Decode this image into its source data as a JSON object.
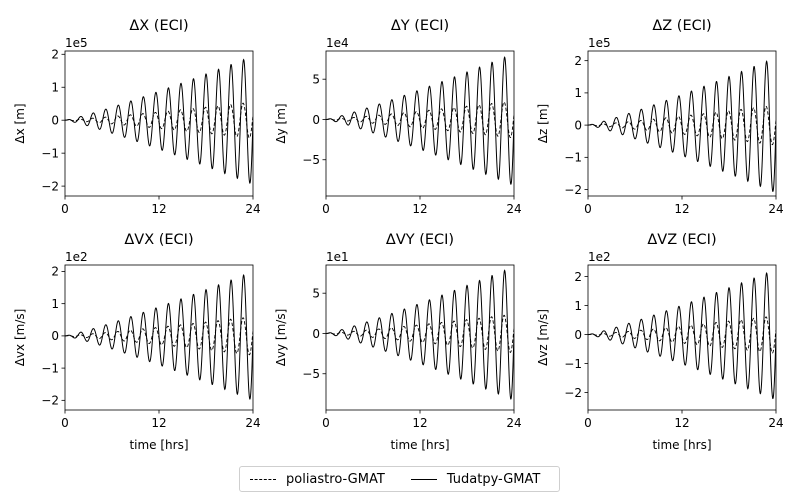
{
  "chart_data": [
    {
      "type": "line",
      "title": "ΔX (ECI)",
      "ylabel": "Δx [m]",
      "xlabel": "",
      "offset_label": "1e5",
      "xlim": [
        0,
        24
      ],
      "ylim": [
        -2.3,
        2.1
      ],
      "xticks": [
        0,
        12,
        24
      ],
      "yticks": [
        -2,
        -1,
        0,
        1,
        2
      ],
      "period_hrs": 1.6,
      "peak_at_24": {
        "Tudatpy-GMAT": 1.95,
        "poliastro-GMAT": 0.55
      }
    },
    {
      "type": "line",
      "title": "ΔY (ECI)",
      "ylabel": "Δy [m]",
      "xlabel": "",
      "offset_label": "1e4",
      "xlim": [
        0,
        24
      ],
      "ylim": [
        -9.5,
        8.5
      ],
      "xticks": [
        0,
        12,
        24
      ],
      "yticks": [
        -5,
        0,
        5
      ],
      "period_hrs": 1.6,
      "peak_at_24": {
        "Tudatpy-GMAT": 8.2,
        "poliastro-GMAT": 2.3
      }
    },
    {
      "type": "line",
      "title": "ΔZ (ECI)",
      "ylabel": "Δz [m]",
      "xlabel": "",
      "offset_label": "1e5",
      "xlim": [
        0,
        24
      ],
      "ylim": [
        -2.2,
        2.3
      ],
      "xticks": [
        0,
        12,
        24
      ],
      "yticks": [
        -2,
        -1,
        0,
        1,
        2
      ],
      "period_hrs": 1.6,
      "peak_at_24": {
        "Tudatpy-GMAT": 2.1,
        "poliastro-GMAT": 0.62
      }
    },
    {
      "type": "line",
      "title": "ΔVX (ECI)",
      "ylabel": "Δvx [m/s]",
      "xlabel": "time [hrs]",
      "offset_label": "1e2",
      "xlim": [
        0,
        24
      ],
      "ylim": [
        -2.3,
        2.2
      ],
      "xticks": [
        0,
        12,
        24
      ],
      "yticks": [
        -2,
        -1,
        0,
        1,
        2
      ],
      "period_hrs": 1.6,
      "peak_at_24": {
        "Tudatpy-GMAT": 2.0,
        "poliastro-GMAT": 0.6
      }
    },
    {
      "type": "line",
      "title": "ΔVY (ECI)",
      "ylabel": "Δvy [m/s]",
      "xlabel": "time [hrs]",
      "offset_label": "1e1",
      "xlim": [
        0,
        24
      ],
      "ylim": [
        -9.5,
        8.5
      ],
      "xticks": [
        0,
        12,
        24
      ],
      "yticks": [
        -5,
        0,
        5
      ],
      "period_hrs": 1.6,
      "peak_at_24": {
        "Tudatpy-GMAT": 8.3,
        "poliastro-GMAT": 2.4
      }
    },
    {
      "type": "line",
      "title": "ΔVZ (ECI)",
      "ylabel": "Δvz [m/s]",
      "xlabel": "time [hrs]",
      "offset_label": "1e2",
      "xlim": [
        0,
        24
      ],
      "ylim": [
        -2.6,
        2.4
      ],
      "xticks": [
        0,
        12,
        24
      ],
      "yticks": [
        -2,
        -1,
        0,
        1,
        2
      ],
      "period_hrs": 1.6,
      "peak_at_24": {
        "Tudatpy-GMAT": 2.25,
        "poliastro-GMAT": 0.65
      }
    }
  ],
  "legend": {
    "items": [
      {
        "name": "poliastro-GMAT",
        "style": "dashed"
      },
      {
        "name": "Tudatpy-GMAT",
        "style": "solid"
      }
    ],
    "placement": "bottom-center"
  },
  "colors": {
    "line": "#000000",
    "background": "#ffffff"
  }
}
